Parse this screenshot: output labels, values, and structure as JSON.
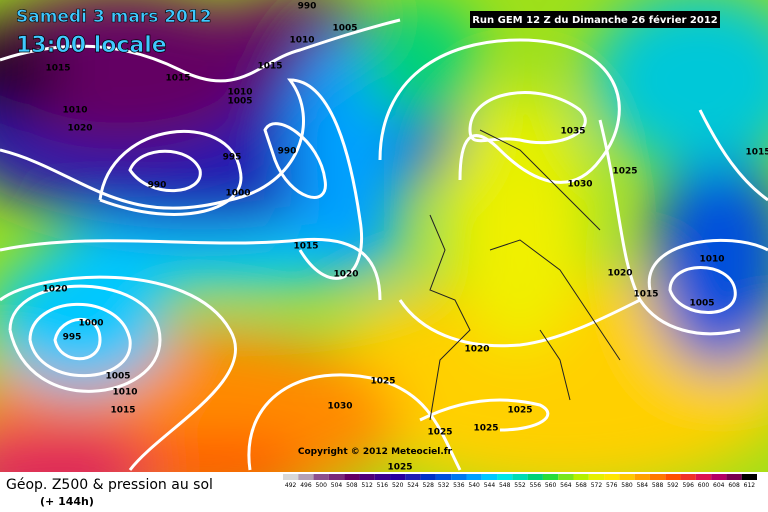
{
  "header": {
    "date": "Samedi 3 mars 2012",
    "time": "13:00 locale",
    "run": "Run GEM 12 Z du Dimanche 26 février 2012"
  },
  "copyright": "Copyright © 2012 Meteociel.fr",
  "footer": {
    "title": "Géop. Z500 & pression au sol",
    "lead": "(+ 144h)"
  },
  "scale": [
    {
      "value": 492,
      "color": "#d8d8d8"
    },
    {
      "value": 496,
      "color": "#b4a0b4"
    },
    {
      "value": 500,
      "color": "#8c508c"
    },
    {
      "value": 504,
      "color": "#7a2a7a"
    },
    {
      "value": 508,
      "color": "#640064"
    },
    {
      "value": 512,
      "color": "#500078"
    },
    {
      "value": 516,
      "color": "#3c008c"
    },
    {
      "value": 520,
      "color": "#2800a0"
    },
    {
      "value": 524,
      "color": "#1e1eb4"
    },
    {
      "value": 528,
      "color": "#0032c8"
    },
    {
      "value": 532,
      "color": "#0050dc"
    },
    {
      "value": 536,
      "color": "#0078f0"
    },
    {
      "value": 540,
      "color": "#00a0ff"
    },
    {
      "value": 544,
      "color": "#00c8ff"
    },
    {
      "value": 548,
      "color": "#00e6e6"
    },
    {
      "value": 552,
      "color": "#00dcb4"
    },
    {
      "value": 556,
      "color": "#00d278"
    },
    {
      "value": 560,
      "color": "#28dc3c"
    },
    {
      "value": 564,
      "color": "#78e61e"
    },
    {
      "value": 568,
      "color": "#b4f000"
    },
    {
      "value": 572,
      "color": "#e6f000"
    },
    {
      "value": 576,
      "color": "#ffe600"
    },
    {
      "value": 580,
      "color": "#ffc800"
    },
    {
      "value": 584,
      "color": "#ffa000"
    },
    {
      "value": 588,
      "color": "#ff7800"
    },
    {
      "value": 592,
      "color": "#ff5000"
    },
    {
      "value": 596,
      "color": "#f03228"
    },
    {
      "value": 600,
      "color": "#dc1450"
    },
    {
      "value": 604,
      "color": "#b40064"
    },
    {
      "value": 608,
      "color": "#780050"
    },
    {
      "value": 612,
      "color": "#000000"
    }
  ],
  "isobar_labels": [
    990,
    1010,
    1005,
    1015,
    1015,
    1015,
    1010,
    1005,
    1010,
    1020,
    995,
    990,
    990,
    1000,
    1035,
    1030,
    1025,
    1015,
    1020,
    1010,
    1020,
    1015,
    1005,
    1015,
    1020,
    1000,
    995,
    1005,
    1010,
    1015,
    1020,
    1025,
    1030,
    1025,
    1025,
    1025,
    1025
  ]
}
